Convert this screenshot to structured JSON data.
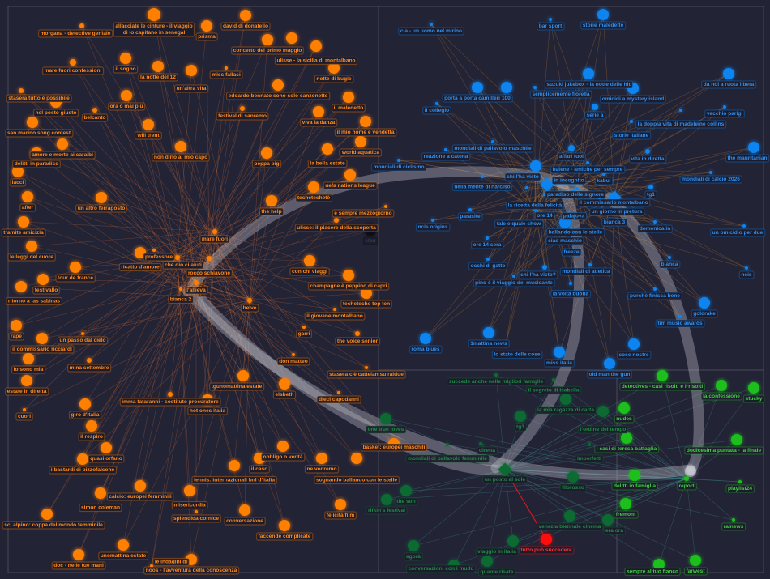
{
  "colors": {
    "background": "#232336",
    "orange": "#ff7f00",
    "blue": "#0a84f0",
    "green": "#1fbf1f",
    "darkgreen": "#0c6b32",
    "red": "#ff1010",
    "black": "#0e0e14",
    "bundle": "#c8c8d2"
  },
  "nodes": [
    {
      "label": "allacciate le cinture - il viaggio di lo capitano in senegal",
      "group": "orange"
    },
    {
      "label": "morgana - detective geniale",
      "group": "orange"
    },
    {
      "label": "prisma",
      "group": "orange"
    },
    {
      "label": "david di donatello",
      "group": "orange"
    },
    {
      "label": "concerto del primo maggio",
      "group": "orange"
    },
    {
      "label": "ulisse - la sicilia di montalbano",
      "group": "orange"
    },
    {
      "label": "notte di bugie",
      "group": "orange"
    },
    {
      "label": "mare fuori confessioni",
      "group": "orange"
    },
    {
      "label": "il sogno",
      "group": "orange"
    },
    {
      "label": "la notte del 12",
      "group": "orange"
    },
    {
      "label": "un'altra vita",
      "group": "orange"
    },
    {
      "label": "miss fallaci",
      "group": "orange"
    },
    {
      "label": "edoardo bennato sono solo canzonette",
      "group": "orange"
    },
    {
      "label": "stasera tutto è possibile",
      "group": "orange"
    },
    {
      "label": "nel posto giusto",
      "group": "orange"
    },
    {
      "label": "il maledetto",
      "group": "orange"
    },
    {
      "label": "ora o mai più",
      "group": "orange"
    },
    {
      "label": "belcanto",
      "group": "orange"
    },
    {
      "label": "festival di sanremo",
      "group": "orange"
    },
    {
      "label": "viva la danza",
      "group": "orange"
    },
    {
      "label": "il mio nome è vendetta",
      "group": "orange"
    },
    {
      "label": "san marino song contest",
      "group": "orange"
    },
    {
      "label": "will trent",
      "group": "orange"
    },
    {
      "label": "world aquatica",
      "group": "orange"
    },
    {
      "label": "non dirlo al mio capo",
      "group": "orange"
    },
    {
      "label": "amore e morte ai caraibi",
      "group": "orange"
    },
    {
      "label": "la bella estate",
      "group": "orange"
    },
    {
      "label": "delitti in paradiso",
      "group": "orange"
    },
    {
      "label": "peppa pig",
      "group": "orange"
    },
    {
      "label": "lacci",
      "group": "orange"
    },
    {
      "label": "uefa nations league",
      "group": "orange"
    },
    {
      "label": "techetechetè",
      "group": "orange"
    },
    {
      "label": "after",
      "group": "orange"
    },
    {
      "label": "un altro ferragosto",
      "group": "orange"
    },
    {
      "label": "the help",
      "group": "orange"
    },
    {
      "label": "è sempre mezzogiorno",
      "group": "orange"
    },
    {
      "label": "tramite amicizia",
      "group": "orange"
    },
    {
      "label": "ulisse: il piacere della scoperta",
      "group": "orange"
    },
    {
      "label": "mare fuori",
      "group": "orange"
    },
    {
      "label": "le leggi del cuore",
      "group": "orange"
    },
    {
      "label": "professore",
      "group": "orange"
    },
    {
      "label": "ricatto d'amore",
      "group": "orange"
    },
    {
      "label": "che dio ci aiuti",
      "group": "orange"
    },
    {
      "label": "rocco schiavone",
      "group": "orange"
    },
    {
      "label": "tour de france",
      "group": "orange"
    },
    {
      "label": "festivallo",
      "group": "orange"
    },
    {
      "label": "ritorno a las sabinas",
      "group": "orange"
    },
    {
      "label": "con chi viaggi",
      "group": "orange"
    },
    {
      "label": "champagne è peppino di capri",
      "group": "orange"
    },
    {
      "label": "l'allieva",
      "group": "orange"
    },
    {
      "label": "bianca 2",
      "group": "orange"
    },
    {
      "label": "belve",
      "group": "orange"
    },
    {
      "label": "techeteche top ten",
      "group": "orange"
    },
    {
      "label": "il giovane montalbano",
      "group": "orange"
    },
    {
      "label": "rape",
      "group": "orange"
    },
    {
      "label": "un passo dal cielo",
      "group": "orange"
    },
    {
      "label": "garri",
      "group": "orange"
    },
    {
      "label": "the voice senior",
      "group": "orange"
    },
    {
      "label": "il commissario ricciardi",
      "group": "orange"
    },
    {
      "label": "io sono mia",
      "group": "orange"
    },
    {
      "label": "mina settembre",
      "group": "orange"
    },
    {
      "label": "don matteo",
      "group": "orange"
    },
    {
      "label": "stasera c'è cattelan su raidue",
      "group": "orange"
    },
    {
      "label": "estate in diretta",
      "group": "orange"
    },
    {
      "label": "tgunomattina estate",
      "group": "orange"
    },
    {
      "label": "elsbeth",
      "group": "orange"
    },
    {
      "label": "dieci capodanni",
      "group": "orange"
    },
    {
      "label": "cuori",
      "group": "orange"
    },
    {
      "label": "imma tataranni - sostituto procuratore",
      "group": "orange"
    },
    {
      "label": "hot ones italia",
      "group": "orange"
    },
    {
      "label": "giro d'italia",
      "group": "orange"
    },
    {
      "label": "il respiro",
      "group": "orange"
    },
    {
      "label": "quasi orfano",
      "group": "orange"
    },
    {
      "label": "i bastardi di pizzofalcone",
      "group": "orange"
    },
    {
      "label": "obbligo o verità",
      "group": "orange"
    },
    {
      "label": "il caso",
      "group": "orange"
    },
    {
      "label": "ne vedremo",
      "group": "orange"
    },
    {
      "label": "sognando ballando con le stelle",
      "group": "orange"
    },
    {
      "label": "basket: europei maschili",
      "group": "orange"
    },
    {
      "label": "tennis: internazionali bnl d'italia",
      "group": "orange"
    },
    {
      "label": "calcio: europei femminili",
      "group": "orange"
    },
    {
      "label": "simon coleman",
      "group": "orange"
    },
    {
      "label": "misericordia",
      "group": "orange"
    },
    {
      "label": "felicità film",
      "group": "orange"
    },
    {
      "label": "splendida cornice",
      "group": "orange"
    },
    {
      "label": "conversazione",
      "group": "orange"
    },
    {
      "label": "sci alpino: coppa del mondo femminile",
      "group": "orange"
    },
    {
      "label": "faccende complicate",
      "group": "orange"
    },
    {
      "label": "unomattina estate",
      "group": "orange"
    },
    {
      "label": "doc - nelle tue mani",
      "group": "orange"
    },
    {
      "label": "le indagini di",
      "group": "orange"
    },
    {
      "label": "noos - l'avventura della conoscenza",
      "group": "orange"
    },
    {
      "label": "clan",
      "group": "black"
    },
    {
      "label": "cia - un uomo nel mirino",
      "group": "blue"
    },
    {
      "label": "bar sport",
      "group": "blue"
    },
    {
      "label": "storie maledette",
      "group": "blue"
    },
    {
      "label": "suzuki jukebox - la notte delle hit",
      "group": "blue"
    },
    {
      "label": "da noi a ruota libera",
      "group": "blue"
    },
    {
      "label": "porta a porta camilleri 100",
      "group": "blue"
    },
    {
      "label": "semplicemente fiorella",
      "group": "blue"
    },
    {
      "label": "omicidi a mystery island",
      "group": "blue"
    },
    {
      "label": "serie a",
      "group": "blue"
    },
    {
      "label": "il collegio",
      "group": "blue"
    },
    {
      "label": "la doppia vita di madeleine collins",
      "group": "blue"
    },
    {
      "label": "vecchio parigi",
      "group": "blue"
    },
    {
      "label": "storie italiane",
      "group": "blue"
    },
    {
      "label": "affari tuoi",
      "group": "blue"
    },
    {
      "label": "mondiali di pallavolo maschile",
      "group": "blue"
    },
    {
      "label": "reazione a catena",
      "group": "blue"
    },
    {
      "label": "vita in diretta",
      "group": "blue"
    },
    {
      "label": "the mauritanian",
      "group": "blue"
    },
    {
      "label": "mondiali di ciclismo",
      "group": "blue"
    },
    {
      "label": "balene - amiche per sempre",
      "group": "blue"
    },
    {
      "label": "chi l'ha visto",
      "group": "blue"
    },
    {
      "label": "in incognito",
      "group": "blue"
    },
    {
      "label": "kabul",
      "group": "blue"
    },
    {
      "label": "mondiali di calcio 2026",
      "group": "blue"
    },
    {
      "label": "nella mente di narciso",
      "group": "blue"
    },
    {
      "label": "paradiso delle signore",
      "group": "blue"
    },
    {
      "label": "il commissario montalbano",
      "group": "blue"
    },
    {
      "label": "tg1",
      "group": "blue"
    },
    {
      "label": "la ricetta della felicità",
      "group": "blue"
    },
    {
      "label": "ore 14",
      "group": "blue"
    },
    {
      "label": "palajova",
      "group": "blue"
    },
    {
      "label": "un giorno in pretura",
      "group": "blue"
    },
    {
      "label": "bianca 3",
      "group": "blue"
    },
    {
      "label": "parasite",
      "group": "blue"
    },
    {
      "label": "tale e quale show",
      "group": "blue"
    },
    {
      "label": "ballando con le stelle",
      "group": "blue"
    },
    {
      "label": "ncis origins",
      "group": "blue"
    },
    {
      "label": "ciao maschio",
      "group": "blue"
    },
    {
      "label": "freeze",
      "group": "blue"
    },
    {
      "label": "domenica in",
      "group": "blue"
    },
    {
      "label": "un omicidio per due",
      "group": "blue"
    },
    {
      "label": "ore 14 sera",
      "group": "blue"
    },
    {
      "label": "bianca",
      "group": "blue"
    },
    {
      "label": "occhi di gatto",
      "group": "blue"
    },
    {
      "label": "chi l'ha visto?",
      "group": "blue"
    },
    {
      "label": "mondiali di atletica",
      "group": "blue"
    },
    {
      "label": "ncis",
      "group": "blue"
    },
    {
      "label": "pino è il viaggio del musicante",
      "group": "blue"
    },
    {
      "label": "la volta buona",
      "group": "blue"
    },
    {
      "label": "purchè finisca bene",
      "group": "blue"
    },
    {
      "label": "goldrake",
      "group": "blue"
    },
    {
      "label": "tim music awards",
      "group": "blue"
    },
    {
      "label": "roma blues",
      "group": "blue"
    },
    {
      "label": "1mattina news",
      "group": "blue"
    },
    {
      "label": "lo stato delle cose",
      "group": "blue"
    },
    {
      "label": "miss italia",
      "group": "blue"
    },
    {
      "label": "cose nostre",
      "group": "blue"
    },
    {
      "label": "old man the gun",
      "group": "blue"
    },
    {
      "label": "succede anche nelle migliori famiglie",
      "group": "darkgreen"
    },
    {
      "label": "il segreto di isabella",
      "group": "darkgreen"
    },
    {
      "label": "detectives - casi risolti e irrisolti",
      "group": "green"
    },
    {
      "label": "la confessione",
      "group": "green"
    },
    {
      "label": "stucky",
      "group": "green"
    },
    {
      "label": "la mia ragazza di carta",
      "group": "darkgreen"
    },
    {
      "label": "one true loves",
      "group": "darkgreen"
    },
    {
      "label": "tg3",
      "group": "darkgreen"
    },
    {
      "label": "l'ordine del tempo",
      "group": "darkgreen"
    },
    {
      "label": "nudes",
      "group": "green"
    },
    {
      "label": "i casi di teresa battaglia",
      "group": "green"
    },
    {
      "label": "dodicesima puntata - la finale",
      "group": "green"
    },
    {
      "label": "mondiali di pallavolo femminile",
      "group": "darkgreen"
    },
    {
      "label": "diretta",
      "group": "darkgreen"
    },
    {
      "label": "imperfetti",
      "group": "darkgreen"
    },
    {
      "label": "un posto al sole",
      "group": "darkgreen"
    },
    {
      "label": "filorosso",
      "group": "darkgreen"
    },
    {
      "label": "delitti in famiglia",
      "group": "green"
    },
    {
      "label": "report",
      "group": "green"
    },
    {
      "label": "playlist24",
      "group": "green"
    },
    {
      "label": "the son",
      "group": "darkgreen"
    },
    {
      "label": "rifkin's festival",
      "group": "darkgreen"
    },
    {
      "label": "fremont",
      "group": "green"
    },
    {
      "label": "venezia biennale cinema",
      "group": "darkgreen"
    },
    {
      "label": "era ora",
      "group": "darkgreen"
    },
    {
      "label": "rainews",
      "group": "green"
    },
    {
      "label": "agorà",
      "group": "darkgreen"
    },
    {
      "label": "viaggio in italia",
      "group": "darkgreen"
    },
    {
      "label": "tutto può succedere",
      "group": "red"
    },
    {
      "label": "conversazioni con i mudù",
      "group": "darkgreen"
    },
    {
      "label": "quante risate",
      "group": "darkgreen"
    },
    {
      "label": "sempre al tuo fianco",
      "group": "green"
    },
    {
      "label": "farwest",
      "group": "green"
    }
  ]
}
